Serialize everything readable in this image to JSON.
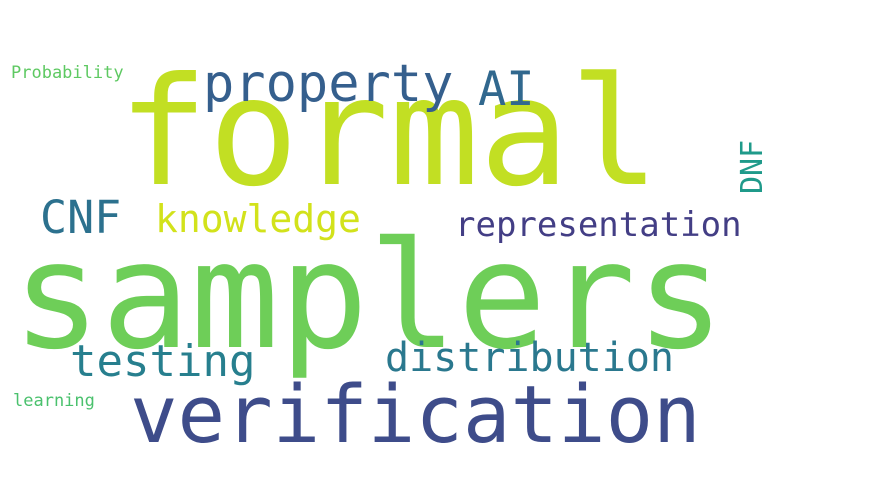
{
  "words": [
    {
      "text": "formal",
      "color": "#c2df23"
    },
    {
      "text": "samplers",
      "color": "#6ece58"
    },
    {
      "text": "verification",
      "color": "#3e4c8a"
    },
    {
      "text": "property",
      "color": "#355f8d"
    },
    {
      "text": "AI",
      "color": "#31688e"
    },
    {
      "text": "CNF",
      "color": "#2c718e"
    },
    {
      "text": "knowledge",
      "color": "#d2e21b"
    },
    {
      "text": "representation",
      "color": "#433e85"
    },
    {
      "text": "testing",
      "color": "#277f8e"
    },
    {
      "text": "distribution",
      "color": "#2a788e"
    },
    {
      "text": "DNF",
      "color": "#1f9a8a"
    },
    {
      "text": "Probability",
      "color": "#5ec962"
    },
    {
      "text": "learning",
      "color": "#4ac16d"
    }
  ]
}
